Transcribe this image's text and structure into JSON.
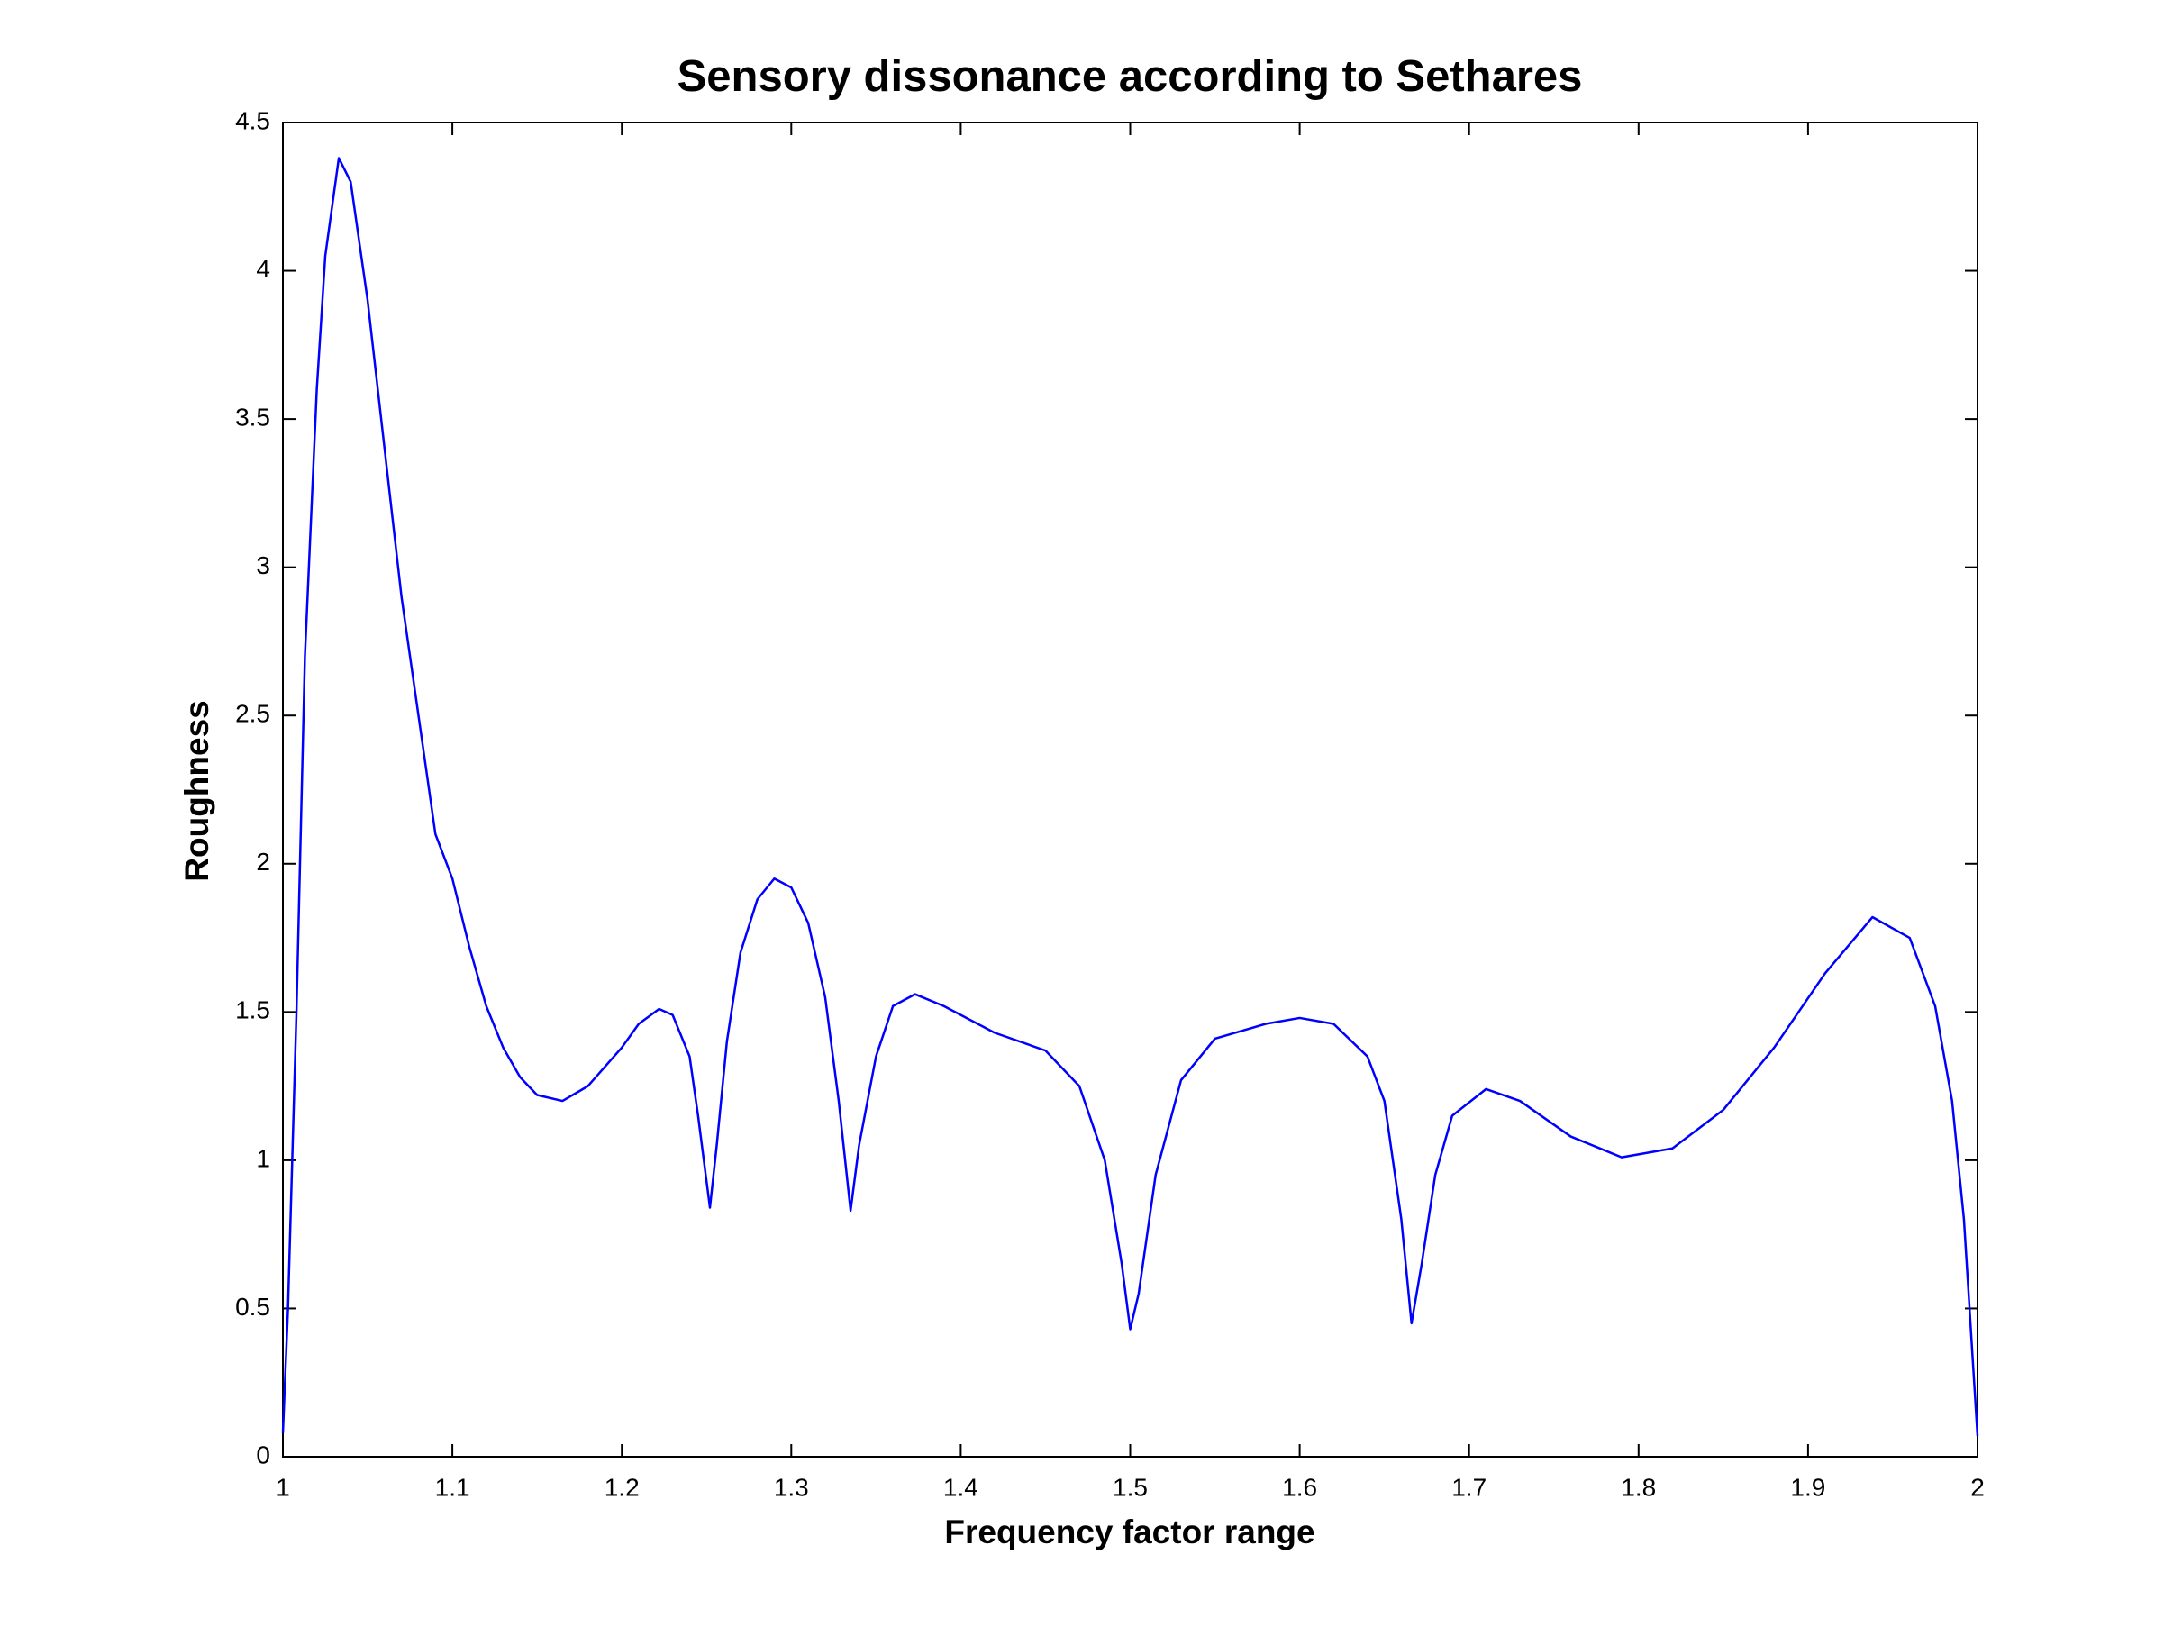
{
  "chart_data": {
    "type": "line",
    "title": "Sensory dissonance according to Sethares",
    "x_label": "Frequency factor range",
    "y_label": "Roughness",
    "color": "#0000ff",
    "x": [
      1.0,
      1.003,
      1.008,
      1.013,
      1.02,
      1.025,
      1.033,
      1.04,
      1.05,
      1.06,
      1.07,
      1.08,
      1.09,
      1.1,
      1.11,
      1.12,
      1.13,
      1.14,
      1.15,
      1.165,
      1.18,
      1.2,
      1.21,
      1.222,
      1.23,
      1.24,
      1.245,
      1.252,
      1.256,
      1.262,
      1.27,
      1.28,
      1.29,
      1.3,
      1.31,
      1.32,
      1.328,
      1.335,
      1.34,
      1.35,
      1.36,
      1.373,
      1.39,
      1.42,
      1.45,
      1.47,
      1.485,
      1.495,
      1.5,
      1.505,
      1.515,
      1.53,
      1.55,
      1.58,
      1.6,
      1.62,
      1.64,
      1.65,
      1.66,
      1.666,
      1.672,
      1.68,
      1.69,
      1.71,
      1.73,
      1.76,
      1.79,
      1.82,
      1.85,
      1.88,
      1.91,
      1.938,
      1.96,
      1.975,
      1.985,
      1.992,
      2.0
    ],
    "values": [
      0.08,
      0.5,
      1.5,
      2.7,
      3.6,
      4.05,
      4.38,
      4.3,
      3.9,
      3.4,
      2.9,
      2.5,
      2.1,
      1.95,
      1.72,
      1.52,
      1.38,
      1.28,
      1.22,
      1.2,
      1.25,
      1.38,
      1.46,
      1.51,
      1.49,
      1.35,
      1.15,
      0.84,
      1.05,
      1.4,
      1.7,
      1.88,
      1.95,
      1.92,
      1.8,
      1.55,
      1.2,
      0.83,
      1.05,
      1.35,
      1.52,
      1.56,
      1.52,
      1.43,
      1.37,
      1.25,
      1.0,
      0.65,
      0.43,
      0.55,
      0.95,
      1.27,
      1.41,
      1.46,
      1.48,
      1.46,
      1.35,
      1.2,
      0.8,
      0.45,
      0.65,
      0.95,
      1.15,
      1.24,
      1.2,
      1.08,
      1.01,
      1.04,
      1.17,
      1.38,
      1.63,
      1.82,
      1.75,
      1.52,
      1.2,
      0.8,
      0.07
    ],
    "xlim": [
      1,
      2
    ],
    "xticks": [
      1,
      1.1,
      1.2,
      1.3,
      1.4,
      1.5,
      1.6,
      1.7,
      1.8,
      1.9,
      2
    ],
    "ylim": [
      0,
      4.5
    ],
    "yticks": [
      0,
      0.5,
      1,
      1.5,
      2,
      2.5,
      3,
      3.5,
      4,
      4.5
    ],
    "grid": false
  }
}
